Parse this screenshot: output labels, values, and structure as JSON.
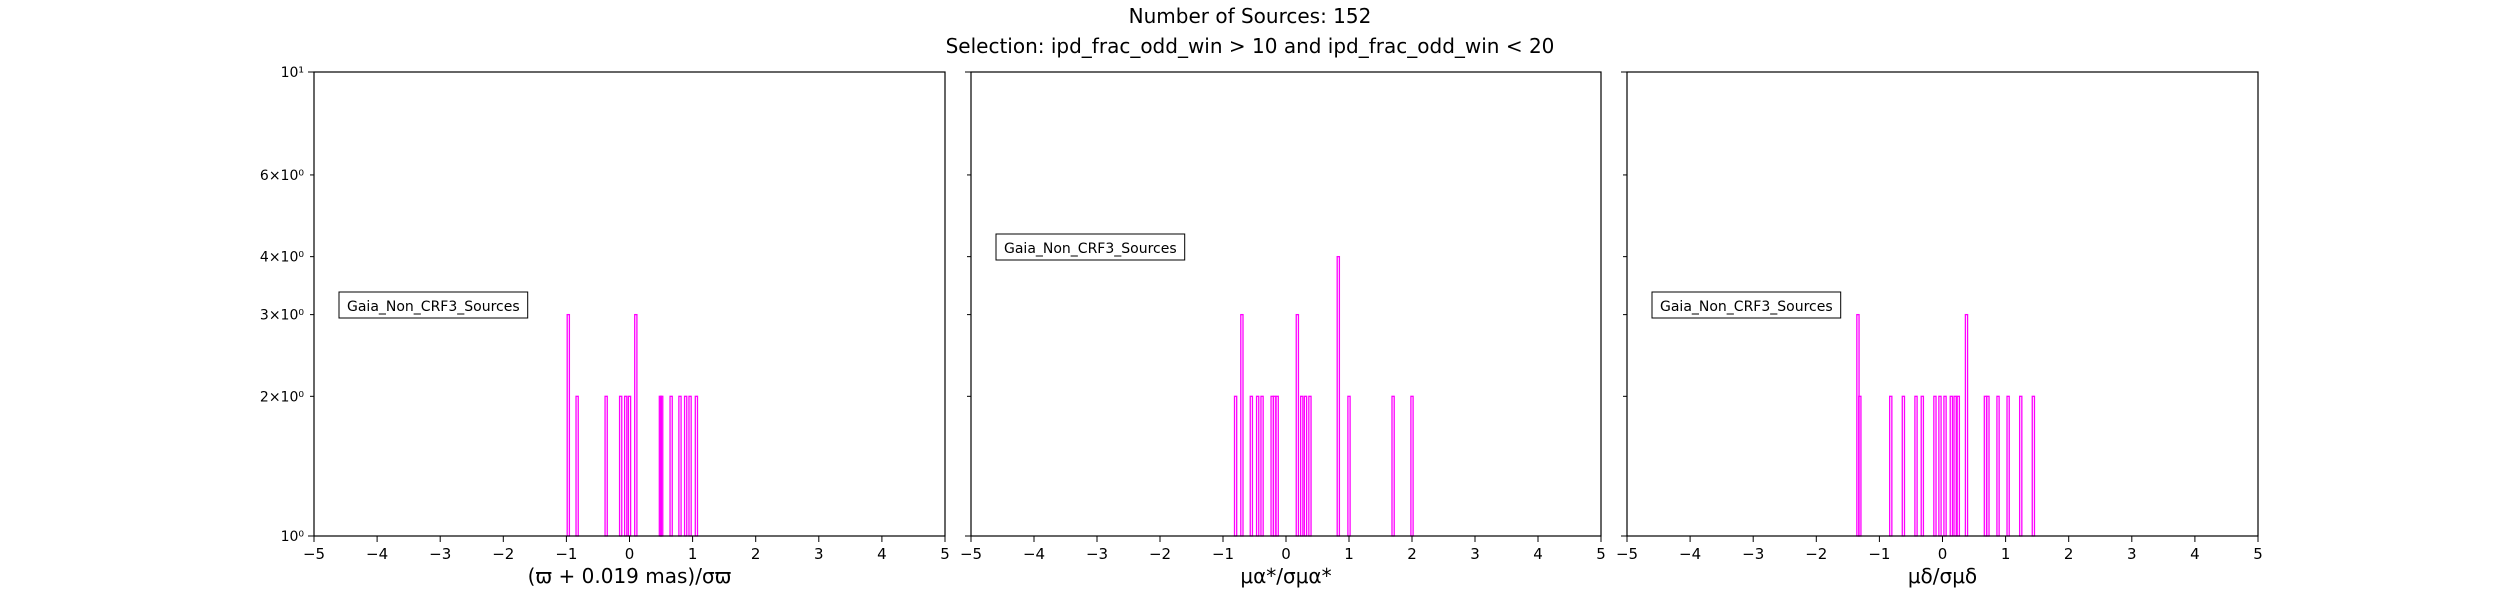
{
  "figure": {
    "title": "Number of Sources: 152",
    "subtitle": "Selection: ipd_frac_odd_win > 10 and ipd_frac_odd_win < 20",
    "bar_color": "#ff00ff"
  },
  "chart_data": [
    {
      "type": "bar",
      "xlabel": "(ϖ + 0.019 mas)/σϖ",
      "ylabel": "",
      "xlim": [
        -5,
        5
      ],
      "ylim": [
        1,
        10
      ],
      "yscale": "log",
      "xticks": [
        -5,
        -4,
        -3,
        -2,
        -1,
        0,
        1,
        2,
        3,
        4,
        5
      ],
      "yticks": [
        {
          "value": 1,
          "label": "10⁰"
        },
        {
          "value": 2,
          "label": "2×10⁰"
        },
        {
          "value": 3,
          "label": "3×10⁰"
        },
        {
          "value": 4,
          "label": "4×10⁰"
        },
        {
          "value": 6,
          "label": "6×10⁰"
        },
        {
          "value": 10,
          "label": "10¹"
        }
      ],
      "legend": {
        "text": "Gaia_Non_CRF3_Sources",
        "placement": "center-left"
      },
      "grid": false,
      "series": [
        {
          "x": [
            -1.0,
            -0.99,
            -0.97,
            -0.83,
            -0.37,
            -0.14,
            -0.06,
            0.0,
            0.1,
            0.11,
            0.49,
            0.51,
            0.66,
            0.8,
            0.89,
            0.96,
            1.06
          ],
          "values": [
            1,
            1,
            3,
            2,
            2,
            2,
            2,
            2,
            3,
            1,
            2,
            2,
            2,
            2,
            2,
            2,
            2
          ]
        }
      ]
    },
    {
      "type": "bar",
      "xlabel": "μα*/σμα*",
      "ylabel": "",
      "xlim": [
        -5,
        5
      ],
      "ylim": [
        1,
        10
      ],
      "yscale": "log",
      "xticks": [
        -5,
        -4,
        -3,
        -2,
        -1,
        0,
        1,
        2,
        3,
        4,
        5
      ],
      "yticks": [
        {
          "value": 1,
          "label": "10⁰"
        },
        {
          "value": 2,
          "label": "2×10⁰"
        },
        {
          "value": 3,
          "label": "3×10⁰"
        },
        {
          "value": 4,
          "label": "4×10⁰"
        },
        {
          "value": 6,
          "label": "6×10⁰"
        },
        {
          "value": 10,
          "label": "10¹"
        }
      ],
      "legend": {
        "text": "Gaia_Non_CRF3_Sources",
        "placement": "upper-left"
      },
      "grid": false,
      "series": [
        {
          "x": [
            -2.0,
            -1.2,
            -0.8,
            -0.7,
            -0.55,
            -0.45,
            -0.38,
            -0.22,
            -0.18,
            -0.14,
            0.18,
            0.25,
            0.31,
            0.38,
            0.83,
            1.0,
            1.7,
            2.0
          ],
          "values": [
            1,
            1,
            2,
            3,
            2,
            2,
            2,
            2,
            2,
            2,
            3,
            2,
            2,
            2,
            4,
            2,
            2,
            2
          ]
        }
      ]
    },
    {
      "type": "bar",
      "xlabel": "μδ/σμδ",
      "ylabel": "",
      "xlim": [
        -5,
        5
      ],
      "ylim": [
        1,
        10
      ],
      "yscale": "log",
      "xticks": [
        -5,
        -4,
        -3,
        -2,
        -1,
        0,
        1,
        2,
        3,
        4,
        5
      ],
      "yticks": [
        {
          "value": 1,
          "label": "10⁰"
        },
        {
          "value": 2,
          "label": "2×10⁰"
        },
        {
          "value": 3,
          "label": "3×10⁰"
        },
        {
          "value": 4,
          "label": "4×10⁰"
        },
        {
          "value": 6,
          "label": "6×10⁰"
        },
        {
          "value": 10,
          "label": "10¹"
        }
      ],
      "legend": {
        "text": "Gaia_Non_CRF3_Sources",
        "placement": "center-left"
      },
      "grid": false,
      "series": [
        {
          "x": [
            -1.34,
            -1.31,
            -0.82,
            -0.62,
            -0.42,
            -0.32,
            -0.12,
            -0.04,
            0.04,
            0.14,
            0.2,
            0.25,
            0.38,
            0.68,
            0.72,
            0.88,
            1.04,
            1.24,
            1.44
          ],
          "values": [
            3,
            2,
            2,
            2,
            2,
            2,
            2,
            2,
            2,
            2,
            2,
            2,
            3,
            2,
            2,
            2,
            2,
            2,
            2
          ]
        }
      ]
    }
  ]
}
